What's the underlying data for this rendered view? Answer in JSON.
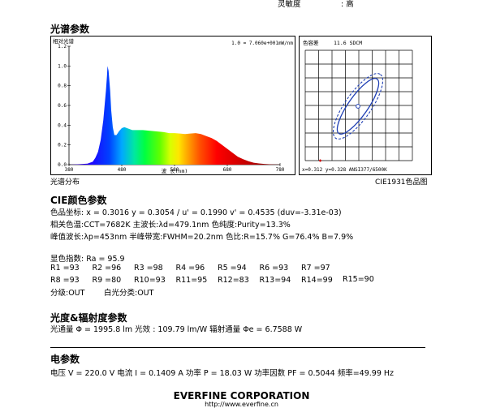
{
  "top": {
    "label": "灵敏度",
    "value": ": 高"
  },
  "spectrum_section": {
    "title": "光谱参数"
  },
  "chart_data": [
    {
      "type": "area",
      "name": "spectrum",
      "title": "",
      "ylabel": "相对光谱",
      "xlabel": "波 长(nm)",
      "scale_note": "1.0 = 7.060e+001mW/nm",
      "xlim": [
        380,
        780
      ],
      "ylim": [
        0,
        1.2
      ],
      "x_ticks": [
        380,
        480,
        580,
        680,
        780
      ],
      "y_ticks": [
        "0.0",
        "0.2",
        "0.4",
        "0.6",
        "0.8",
        "1.0",
        "1.2"
      ],
      "x": [
        380,
        400,
        415,
        425,
        430,
        435,
        440,
        445,
        450,
        452,
        453,
        455,
        458,
        460,
        463,
        466,
        470,
        475,
        480,
        485,
        490,
        500,
        510,
        520,
        530,
        540,
        550,
        560,
        570,
        580,
        590,
        600,
        610,
        620,
        630,
        640,
        650,
        660,
        670,
        680,
        690,
        700,
        710,
        720,
        730,
        740,
        750,
        760,
        770,
        780
      ],
      "y": [
        0,
        0.005,
        0.01,
        0.03,
        0.07,
        0.13,
        0.25,
        0.45,
        0.75,
        0.9,
        1.0,
        0.95,
        0.75,
        0.55,
        0.38,
        0.3,
        0.3,
        0.34,
        0.37,
        0.38,
        0.37,
        0.35,
        0.35,
        0.35,
        0.345,
        0.34,
        0.335,
        0.33,
        0.32,
        0.32,
        0.315,
        0.31,
        0.315,
        0.32,
        0.31,
        0.29,
        0.27,
        0.24,
        0.2,
        0.16,
        0.12,
        0.08,
        0.055,
        0.035,
        0.02,
        0.012,
        0.007,
        0.004,
        0.002,
        0.001
      ]
    },
    {
      "type": "scatter",
      "name": "chromaticity",
      "title": "色容差",
      "tolerance": "11.6 SDCM",
      "grid": true,
      "point": {
        "x": 0.312,
        "y": 0.328
      },
      "readout": "x=0.312  y=0.328 ANSI377/6500K"
    }
  ],
  "captions": {
    "left": "光谱分布",
    "right": "CIE1931色品图"
  },
  "cie": {
    "title": "CIE颜色参数",
    "line1": "色品坐标: x = 0.3016  y = 0.3054 / u' = 0.1990  v' = 0.4535  (duv=-3.31e-03)",
    "line2": "相关色温:CCT=7682K   主波长:λd=479.1nm    色纯度:Purity=13.3%",
    "line3": "峰值波长:λp=453nm  半峰带宽:FWHM=20.2nm   色比:R=15.7% G=76.4% B=7.9%",
    "ra": "显色指数: Ra = 95.9",
    "r_values": [
      "R1 =93",
      "R2 =96",
      "R3 =98",
      "R4 =96",
      "R5 =94",
      "R6 =93",
      "R7 =97",
      "R8 =93",
      "R9 =80",
      "R10=93",
      "R11=95",
      "R12=83",
      "R13=94",
      "R14=99",
      "R15=90"
    ],
    "grade": "分级:OUT",
    "white_grade": "白光分类:OUT"
  },
  "photometric": {
    "title": "光度&辐射度参数",
    "line": "光通量  Φ = 1995.8 lm   光效 : 109.79 lm/W   辐射通量 Φe = 6.7588 W"
  },
  "electrical": {
    "title": "电参数",
    "line": "电压 V = 220.0 V  电流 I = 0.1409 A  功率 P = 18.03 W  功率因数 PF = 0.5044  频率=49.99 Hz"
  },
  "footer": {
    "company": "EVERFINE CORPORATION",
    "url": "http://www.everfine.cn"
  },
  "colors": {
    "ellipse_inner": "#1f3fb4",
    "ellipse_outer": "#1f3fb4",
    "marker": "#d00000"
  }
}
